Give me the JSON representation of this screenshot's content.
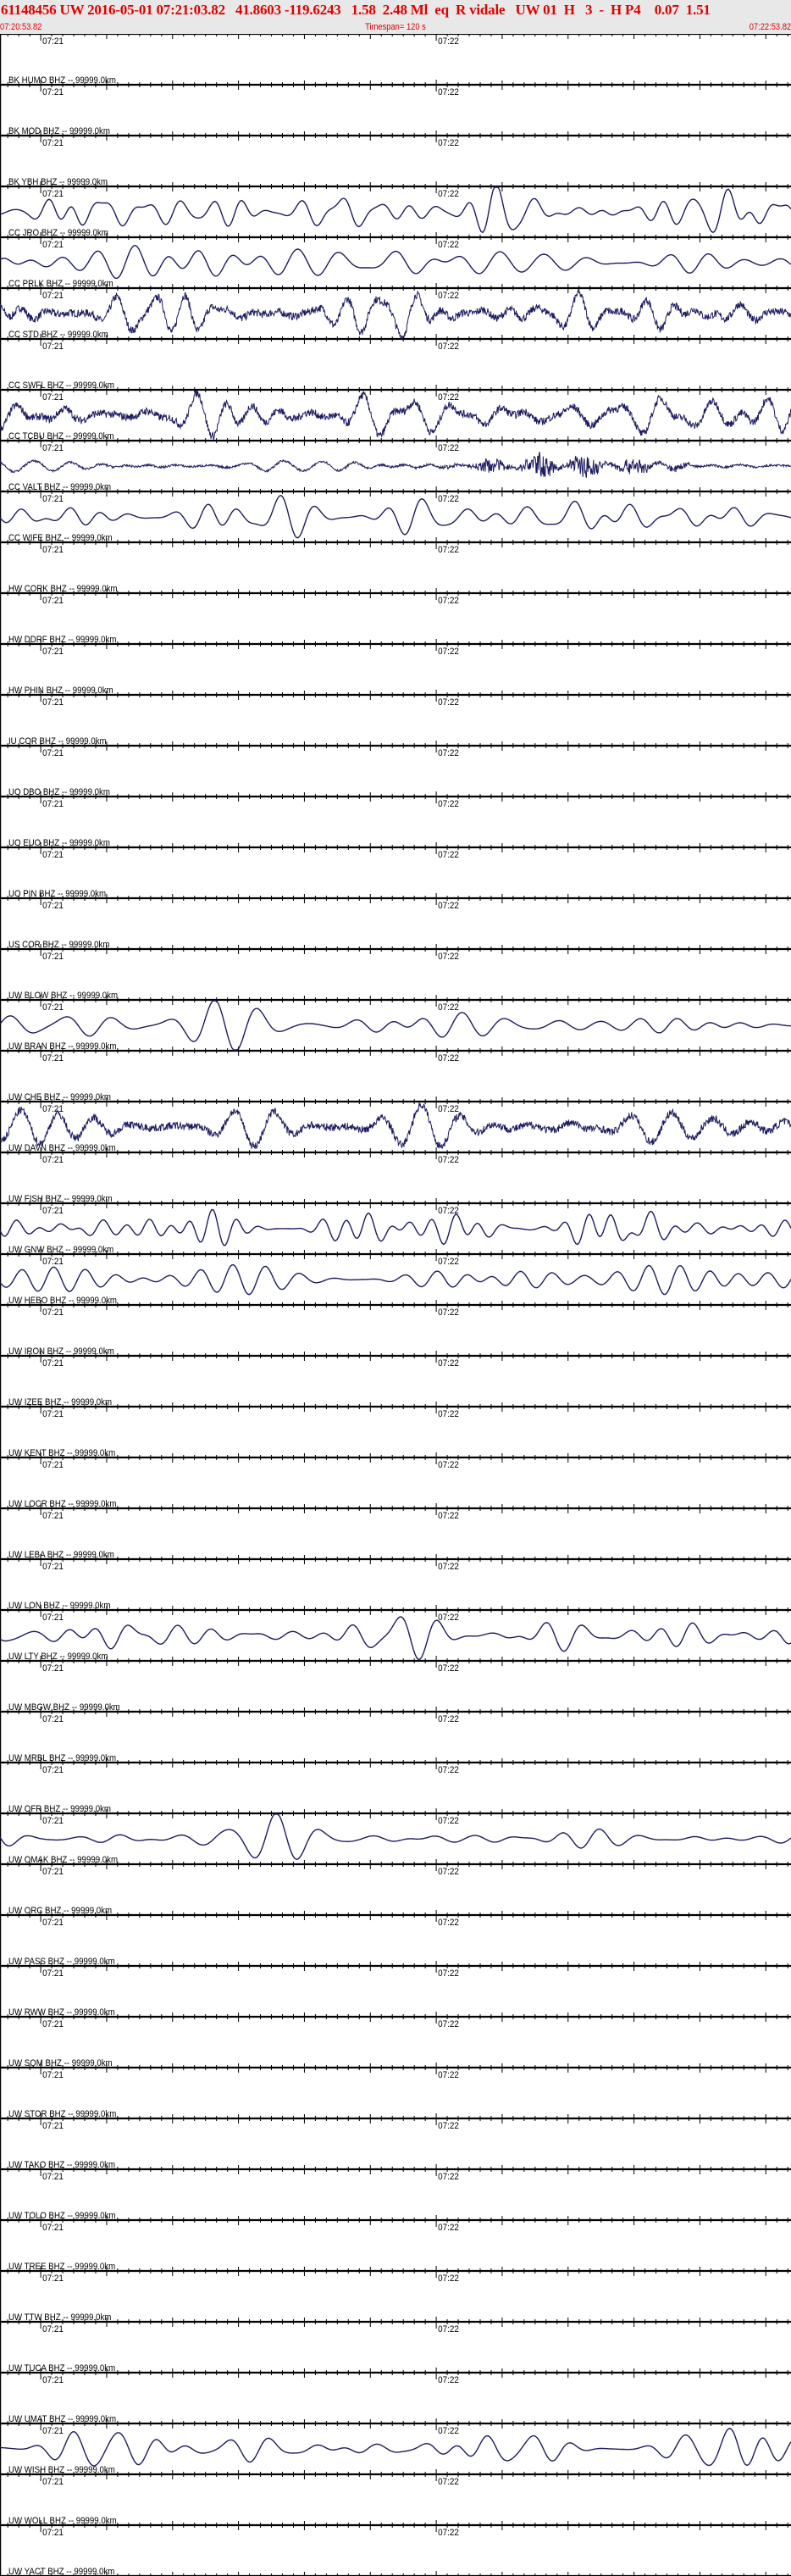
{
  "header": {
    "title": "61148456 UW 2016-05-01 07:21:03.82   41.8603 -119.6243   1.58  2.48 Ml  eq  R vidale   UW 01  H   3  -  H P4    0.07  1.51",
    "start_time": "07:20:53.82",
    "timespan": "Timespan= 120 s",
    "end_time": "07:22:53.82"
  },
  "colors": {
    "header_text": "#e00000",
    "header_bg": "#e8e8e8",
    "trace": "#1c1c60",
    "axis": "#000000"
  },
  "chart_data": {
    "type": "line",
    "x_unit": "time",
    "xlim": [
      "07:20:53.82",
      "07:22:53.82"
    ],
    "x_tick_labels": [
      "07:21",
      "07:22"
    ],
    "series": [
      {
        "name": "BK HUMO BHZ -- 99999.0km",
        "has_trace": false
      },
      {
        "name": "BK MOD BHZ -- 99999.0km",
        "has_trace": false
      },
      {
        "name": "BK YBH BHZ -- 99999.0km",
        "has_trace": false
      },
      {
        "name": "CC JRO BHZ -- 99999.0km",
        "has_trace": true,
        "style": "smooth"
      },
      {
        "name": "CC PRLK BHZ -- 99999.0km",
        "has_trace": true,
        "style": "smooth"
      },
      {
        "name": "CC STD BHZ -- 99999.0km",
        "has_trace": true,
        "style": "noisy"
      },
      {
        "name": "CC SWFL BHZ -- 99999.0km",
        "has_trace": false
      },
      {
        "name": "CC TCBU BHZ -- 99999.0km",
        "has_trace": true,
        "style": "noisy"
      },
      {
        "name": "CC VALT BHZ -- 99999.0km",
        "has_trace": true,
        "style": "burst"
      },
      {
        "name": "CC WIFE BHZ -- 99999.0km",
        "has_trace": true,
        "style": "smooth"
      },
      {
        "name": "HW CORK BHZ -- 99999.0km",
        "has_trace": false
      },
      {
        "name": "HW DDRF BHZ -- 99999.0km",
        "has_trace": false
      },
      {
        "name": "HW PHIN BHZ -- 99999.0km",
        "has_trace": false
      },
      {
        "name": "IU COR BHZ -- 99999.0km",
        "has_trace": false
      },
      {
        "name": "UO DBO BHZ -- 99999.0km",
        "has_trace": false
      },
      {
        "name": "UO EUO BHZ -- 99999.0km",
        "has_trace": false
      },
      {
        "name": "UO PIN BHZ -- 99999.0km",
        "has_trace": false
      },
      {
        "name": "US COR BHZ -- 99999.0km",
        "has_trace": false
      },
      {
        "name": "UW BLOW BHZ -- 99999.0km",
        "has_trace": false
      },
      {
        "name": "UW BRAN BHZ -- 99999.0km",
        "has_trace": true,
        "style": "smooth"
      },
      {
        "name": "UW CHE BHZ -- 99999.0km",
        "has_trace": false
      },
      {
        "name": "UW DAVN BHZ -- 99999.0km",
        "has_trace": true,
        "style": "noisy"
      },
      {
        "name": "UW FISH BHZ -- 99999.0km",
        "has_trace": false
      },
      {
        "name": "UW GNW BHZ -- 99999.0km",
        "has_trace": true,
        "style": "smooth"
      },
      {
        "name": "UW HEBO BHZ -- 99999.0km",
        "has_trace": true,
        "style": "smooth"
      },
      {
        "name": "UW IRON BHZ -- 99999.0km",
        "has_trace": false
      },
      {
        "name": "UW IZEE BHZ -- 99999.0km",
        "has_trace": false
      },
      {
        "name": "UW KENT BHZ -- 99999.0km",
        "has_trace": false
      },
      {
        "name": "UW LOCR BHZ -- 99999.0km",
        "has_trace": false
      },
      {
        "name": "UW LEBA BHZ -- 99999.0km",
        "has_trace": false
      },
      {
        "name": "UW LON BHZ -- 99999.0km",
        "has_trace": false
      },
      {
        "name": "UW LTY BHZ -- 99999.0km",
        "has_trace": true,
        "style": "smooth"
      },
      {
        "name": "UW MBGW BHZ -- 99999.0km",
        "has_trace": false
      },
      {
        "name": "UW MRBL BHZ -- 99999.0km",
        "has_trace": false
      },
      {
        "name": "UW OFR BHZ -- 99999.0km",
        "has_trace": false
      },
      {
        "name": "UW OMAK BHZ -- 99999.0km",
        "has_trace": true,
        "style": "smooth"
      },
      {
        "name": "UW ORC BHZ -- 99999.0km",
        "has_trace": false
      },
      {
        "name": "UW PASS BHZ -- 99999.0km",
        "has_trace": false
      },
      {
        "name": "UW RWW BHZ -- 99999.0km",
        "has_trace": false
      },
      {
        "name": "UW SQM BHZ -- 99999.0km",
        "has_trace": false
      },
      {
        "name": "UW STOR BHZ -- 99999.0km",
        "has_trace": false
      },
      {
        "name": "UW TAKO BHZ -- 99999.0km",
        "has_trace": false
      },
      {
        "name": "UW TOLO BHZ -- 99999.0km",
        "has_trace": false
      },
      {
        "name": "UW TREE BHZ -- 99999.0km",
        "has_trace": false
      },
      {
        "name": "UW TTW BHZ -- 99999.0km",
        "has_trace": false
      },
      {
        "name": "UW TUCA BHZ -- 99999.0km",
        "has_trace": false
      },
      {
        "name": "UW UMAT BHZ -- 99999.0km",
        "has_trace": false
      },
      {
        "name": "UW WISH BHZ -- 99999.0km",
        "has_trace": true,
        "style": "smooth"
      },
      {
        "name": "UW WOLL BHZ -- 99999.0km",
        "has_trace": false
      },
      {
        "name": "UW YACT BHZ -- 99999.0km",
        "has_trace": false
      }
    ]
  }
}
